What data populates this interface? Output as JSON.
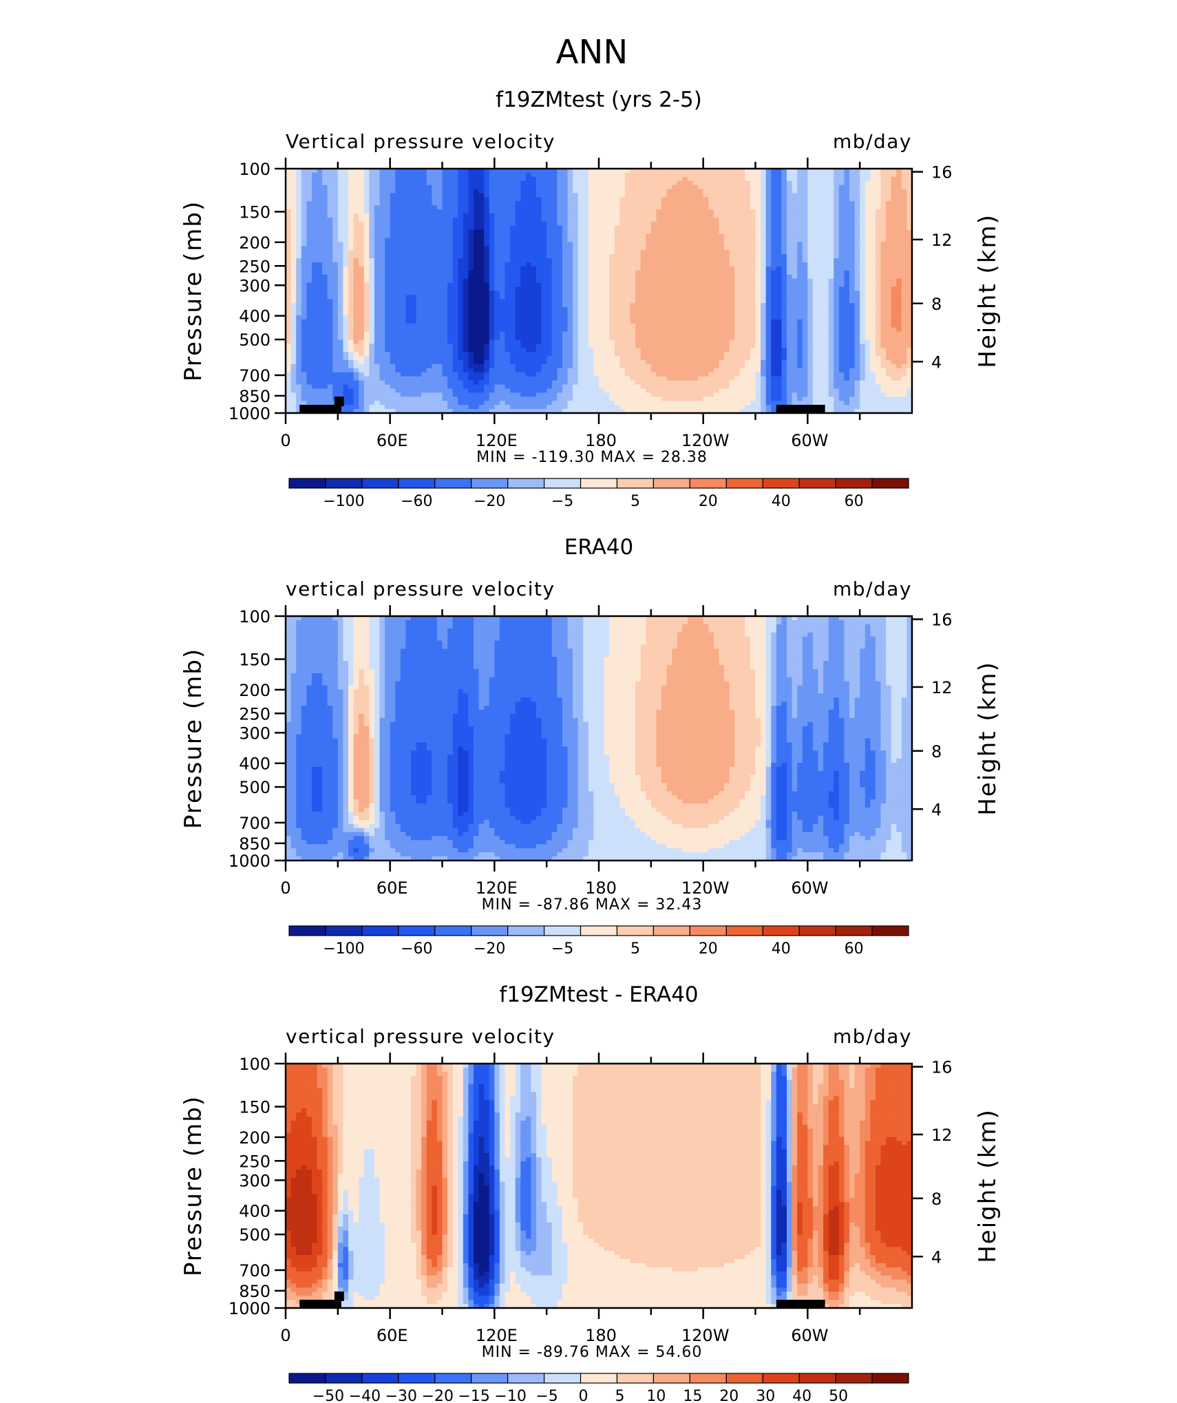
{
  "page_title": "ANN",
  "chart_data": [
    {
      "type": "heatmap",
      "title": "f19ZMtest (yrs 2-5)",
      "subtitle_left": "Vertical pressure velocity",
      "subtitle_right": "mb/day",
      "ylabel": "Pressure (mb)",
      "ylabel_right": "Height (km)",
      "x_ticks": [
        "0",
        "60E",
        "120E",
        "180",
        "120W",
        "60W"
      ],
      "y_ticks": [
        "100",
        "150",
        "200",
        "250",
        "300",
        "400",
        "500",
        "700",
        "850",
        "1000"
      ],
      "y_right_ticks": [
        "16",
        "12",
        "8",
        "4"
      ],
      "min_label": "MIN = -119.30",
      "max_label": "MAX = 28.38",
      "colorbar_labels": [
        "-100",
        "-60",
        "-20",
        "-5",
        "5",
        "20",
        "40",
        "60"
      ],
      "levels": [
        -120,
        -100,
        -80,
        -60,
        -40,
        -20,
        -10,
        -5,
        0,
        5,
        10,
        20,
        30,
        40,
        50,
        60,
        70
      ],
      "xlim": [
        0,
        360
      ],
      "ylim": [
        1000,
        100
      ],
      "features": [
        {
          "lon": 18,
          "p": 520,
          "value": -35,
          "wl": 8,
          "wp": 240
        },
        {
          "lon": 36,
          "p": 850,
          "value": -45,
          "wl": 5,
          "wp": 120
        },
        {
          "lon": 42,
          "p": 380,
          "value": 22,
          "wl": 5,
          "wp": 180
        },
        {
          "lon": 72,
          "p": 380,
          "value": -38,
          "wl": 13,
          "wp": 260
        },
        {
          "lon": 105,
          "p": 420,
          "value": -75,
          "wl": 8,
          "wp": 300
        },
        {
          "lon": 112,
          "p": 400,
          "value": -95,
          "wl": 4,
          "wp": 220
        },
        {
          "lon": 140,
          "p": 400,
          "value": -70,
          "wl": 13,
          "wp": 270
        },
        {
          "lon": 228,
          "p": 500,
          "value": 16,
          "wl": 28,
          "wp": 330
        },
        {
          "lon": 282,
          "p": 550,
          "value": -75,
          "wl": 4,
          "wp": 300
        },
        {
          "lon": 296,
          "p": 500,
          "value": -22,
          "wl": 4,
          "wp": 260
        },
        {
          "lon": 322,
          "p": 480,
          "value": -28,
          "wl": 5,
          "wp": 260
        },
        {
          "lon": 352,
          "p": 380,
          "value": 24,
          "wl": 9,
          "wp": 240
        }
      ],
      "background": -3,
      "upper_warm": {
        "lon": 240,
        "value": 6,
        "wl": 60
      }
    },
    {
      "type": "heatmap",
      "title": "ERA40",
      "subtitle_left": "vertical pressure velocity",
      "subtitle_right": "mb/day",
      "ylabel": "Pressure (mb)",
      "ylabel_right": "Height (km)",
      "x_ticks": [
        "0",
        "60E",
        "120E",
        "180",
        "120W",
        "60W"
      ],
      "y_ticks": [
        "100",
        "150",
        "200",
        "250",
        "300",
        "400",
        "500",
        "700",
        "850",
        "1000"
      ],
      "y_right_ticks": [
        "16",
        "12",
        "8",
        "4"
      ],
      "min_label": "MIN = -87.86",
      "max_label": "MAX = 32.43",
      "colorbar_labels": [
        "-100",
        "-60",
        "-20",
        "-5",
        "5",
        "20",
        "40",
        "60"
      ],
      "levels": [
        -120,
        -100,
        -80,
        -60,
        -40,
        -20,
        -10,
        -5,
        0,
        5,
        10,
        20,
        30,
        40,
        50,
        60,
        70
      ],
      "xlim": [
        0,
        360
      ],
      "ylim": [
        1000,
        100
      ],
      "features": [
        {
          "lon": 18,
          "p": 520,
          "value": -40,
          "wl": 10,
          "wp": 260
        },
        {
          "lon": 44,
          "p": 450,
          "value": 25,
          "wl": 6,
          "wp": 220
        },
        {
          "lon": 42,
          "p": 900,
          "value": -40,
          "wl": 4,
          "wp": 90
        },
        {
          "lon": 78,
          "p": 450,
          "value": -40,
          "wl": 14,
          "wp": 280
        },
        {
          "lon": 102,
          "p": 500,
          "value": -55,
          "wl": 5,
          "wp": 260
        },
        {
          "lon": 138,
          "p": 450,
          "value": -52,
          "wl": 16,
          "wp": 290
        },
        {
          "lon": 235,
          "p": 400,
          "value": 14,
          "wl": 24,
          "wp": 320
        },
        {
          "lon": 285,
          "p": 600,
          "value": -55,
          "wl": 4,
          "wp": 280
        },
        {
          "lon": 300,
          "p": 500,
          "value": -30,
          "wl": 5,
          "wp": 250
        },
        {
          "lon": 316,
          "p": 550,
          "value": -42,
          "wl": 5,
          "wp": 260
        },
        {
          "lon": 335,
          "p": 450,
          "value": -20,
          "wl": 6,
          "wp": 240
        }
      ],
      "background": -4,
      "upper_warm": {
        "lon": 240,
        "value": 6,
        "wl": 55
      }
    },
    {
      "type": "heatmap",
      "title": "f19ZMtest - ERA40",
      "subtitle_left": "vertical pressure velocity",
      "subtitle_right": "mb/day",
      "ylabel": "Pressure (mb)",
      "ylabel_right": "Height (km)",
      "x_ticks": [
        "0",
        "60E",
        "120E",
        "180",
        "120W",
        "60W"
      ],
      "y_ticks": [
        "100",
        "150",
        "200",
        "250",
        "300",
        "400",
        "500",
        "700",
        "850",
        "1000"
      ],
      "y_right_ticks": [
        "16",
        "12",
        "8",
        "4"
      ],
      "min_label": "MIN = -89.76",
      "max_label": "MAX = 54.60",
      "colorbar_labels": [
        "-50",
        "-40",
        "-30",
        "-20",
        "-15",
        "-10",
        "-5",
        "0",
        "5",
        "10",
        "15",
        "20",
        "30",
        "40",
        "50"
      ],
      "levels": [
        -60,
        -50,
        -40,
        -30,
        -20,
        -15,
        -10,
        -5,
        0,
        5,
        10,
        15,
        20,
        30,
        40,
        50,
        60
      ],
      "xlim": [
        0,
        360
      ],
      "ylim": [
        1000,
        100
      ],
      "features": [
        {
          "lon": 12,
          "p": 450,
          "value": 42,
          "wl": 10,
          "wp": 280
        },
        {
          "lon": 33,
          "p": 650,
          "value": -25,
          "wl": 3,
          "wp": 200
        },
        {
          "lon": 48,
          "p": 520,
          "value": -8,
          "wl": 6,
          "wp": 260
        },
        {
          "lon": 85,
          "p": 420,
          "value": 28,
          "wl": 5,
          "wp": 260
        },
        {
          "lon": 113,
          "p": 500,
          "value": -70,
          "wl": 6,
          "wp": 320
        },
        {
          "lon": 138,
          "p": 350,
          "value": -22,
          "wl": 5,
          "wp": 200
        },
        {
          "lon": 150,
          "p": 550,
          "value": -10,
          "wl": 8,
          "wp": 260
        },
        {
          "lon": 285,
          "p": 450,
          "value": -55,
          "wl": 4,
          "wp": 300
        },
        {
          "lon": 296,
          "p": 450,
          "value": 28,
          "wl": 5,
          "wp": 280
        },
        {
          "lon": 315,
          "p": 520,
          "value": 40,
          "wl": 5,
          "wp": 280
        },
        {
          "lon": 346,
          "p": 380,
          "value": 32,
          "wl": 12,
          "wp": 260
        },
        {
          "lon": 230,
          "p": 400,
          "value": 4,
          "wl": 40,
          "wp": 300
        }
      ],
      "background": 2,
      "upper_warm": {
        "lon": 180,
        "value": 3,
        "wl": 150
      }
    }
  ],
  "palette": [
    "#0a1a8c",
    "#0f2bb0",
    "#1640d8",
    "#2358f0",
    "#3b72f5",
    "#6a97f7",
    "#9cbbf8",
    "#cde0fb",
    "#fde8d6",
    "#fccdb0",
    "#f9ac88",
    "#f58a5f",
    "#ee6332",
    "#de4419",
    "#c23012",
    "#a3200d",
    "#7a1004"
  ]
}
